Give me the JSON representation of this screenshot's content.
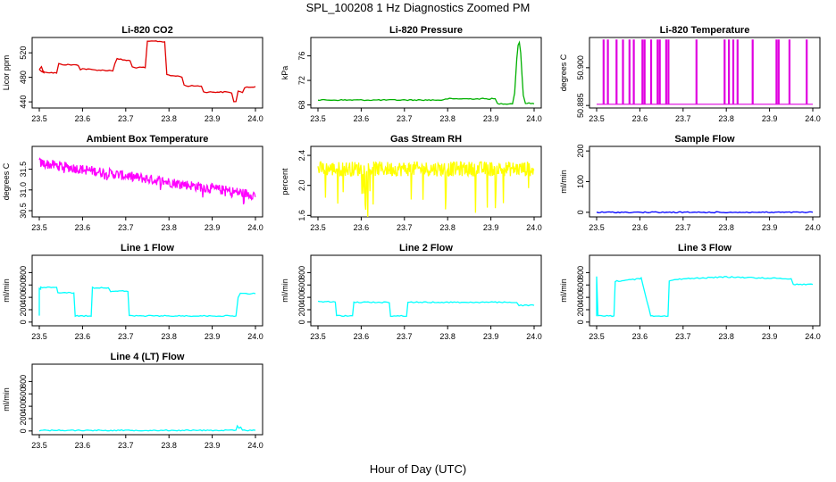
{
  "figure": {
    "title": "SPL_100208  1 Hz Diagnostics Zoomed PM",
    "xlabel": "Hour of Day (UTC)"
  },
  "chart_data": [
    {
      "type": "line",
      "title": "Li-820 CO2",
      "ylabel": "Licor ppm",
      "color": "#e00000",
      "xlim": [
        23.5,
        24.0
      ],
      "ylim": [
        430,
        545
      ],
      "xticks": [
        "23.5",
        "23.6",
        "23.7",
        "23.8",
        "23.9",
        "24.0"
      ],
      "yticks": [
        440,
        480,
        520
      ],
      "series": [
        {
          "x": [
            23.5,
            23.505,
            23.51,
            23.5,
            23.505,
            23.52,
            23.54,
            23.545,
            23.55,
            23.59,
            23.595,
            23.6,
            23.63,
            23.67,
            23.675,
            23.68,
            23.71,
            23.715,
            23.72,
            23.745,
            23.75,
            23.76,
            23.77,
            23.79,
            23.795,
            23.8,
            23.82,
            23.83,
            23.835,
            23.84,
            23.875,
            23.88,
            23.94,
            23.945,
            23.95,
            23.955,
            23.96,
            23.97,
            23.975,
            23.98,
            24.0
          ],
          "y": [
            493,
            497,
            488,
            493,
            490,
            488,
            487,
            502,
            501,
            500,
            493,
            494,
            492,
            491,
            503,
            510,
            507,
            497,
            496,
            496,
            538,
            539,
            539,
            538,
            485,
            483,
            482,
            481,
            467,
            466,
            466,
            456,
            456,
            454,
            441,
            440,
            458,
            455,
            462,
            464,
            465
          ]
        }
      ]
    },
    {
      "type": "line",
      "title": "Li-820 Pressure",
      "ylabel": "kPa",
      "color": "#00b000",
      "xlim": [
        23.5,
        24.0
      ],
      "ylim": [
        67.5,
        79
      ],
      "xticks": [
        "23.5",
        "23.6",
        "23.7",
        "23.8",
        "23.9",
        "24.0"
      ],
      "yticks": [
        68,
        72,
        76
      ],
      "series": [
        {
          "x": [
            23.5,
            23.79,
            23.8,
            23.91,
            23.915,
            23.95,
            23.955,
            23.96,
            23.963,
            23.966,
            23.969,
            23.972,
            23.975,
            23.98,
            24.0
          ],
          "y": [
            68.8,
            68.8,
            69.0,
            69.0,
            68.2,
            68.2,
            70.0,
            75.5,
            77.8,
            78.2,
            76.5,
            73.0,
            69.5,
            68.3,
            68.2
          ]
        }
      ]
    },
    {
      "type": "line",
      "title": "Li-820 Temperature",
      "ylabel": "degrees C",
      "color": "#e000e0",
      "xlim": [
        23.5,
        24.0
      ],
      "ylim": [
        50.884,
        50.912
      ],
      "xticks": [
        "23.5",
        "23.6",
        "23.7",
        "23.8",
        "23.9",
        "24.0"
      ],
      "yticks": [
        50.885,
        50.9
      ],
      "ytick_labels": [
        "50.885",
        "50.900"
      ],
      "baseline": 50.8855,
      "spikes": [
        23.515,
        23.525,
        23.545,
        23.56,
        23.575,
        23.585,
        23.605,
        23.61,
        23.625,
        23.64,
        23.645,
        23.66,
        23.665,
        23.73,
        23.795,
        23.805,
        23.815,
        23.825,
        23.86,
        23.915,
        23.92,
        23.945,
        23.985
      ],
      "spike_top": 50.911
    },
    {
      "type": "line",
      "title": "Ambient Box Temperature",
      "ylabel": "degrees C",
      "color": "#ff00ff",
      "xlim": [
        23.5,
        24.0
      ],
      "ylim": [
        30.35,
        32.05
      ],
      "xticks": [
        "23.5",
        "23.6",
        "23.7",
        "23.8",
        "23.9",
        "24.0"
      ],
      "yticks": [
        30.5,
        31.0,
        31.5
      ],
      "ytick_labels": [
        "30.5",
        "31.0",
        "31.5"
      ],
      "trend": {
        "x": [
          23.5,
          24.0
        ],
        "y": [
          31.65,
          30.88
        ]
      },
      "noise": 0.12
    },
    {
      "type": "line",
      "title": "Gas Stream RH",
      "ylabel": "percent",
      "color": "#ffff00",
      "xlim": [
        23.5,
        24.0
      ],
      "ylim": [
        1.58,
        2.52
      ],
      "xticks": [
        "23.5",
        "23.6",
        "23.7",
        "23.8",
        "23.9",
        "24.0"
      ],
      "yticks": [
        1.6,
        2.0,
        2.4
      ],
      "ytick_labels": [
        "1.6",
        "2.0",
        "2.4"
      ],
      "center": 2.22,
      "noise": 0.1
    },
    {
      "type": "line",
      "title": "Sample Flow",
      "ylabel": "ml/min",
      "color": "#0000ff",
      "xlim": [
        23.5,
        24.0
      ],
      "ylim": [
        -15,
        215
      ],
      "xticks": [
        "23.5",
        "23.6",
        "23.7",
        "23.8",
        "23.9",
        "24.0"
      ],
      "yticks": [
        0,
        100,
        200
      ],
      "series": [
        {
          "x": [
            23.5,
            24.0
          ],
          "y": [
            0,
            0
          ]
        }
      ]
    },
    {
      "type": "line",
      "title": "Line 1 Flow",
      "ylabel": "ml/min",
      "color": "#00ffff",
      "xlim": [
        23.5,
        24.0
      ],
      "ylim": [
        -60,
        1080
      ],
      "xticks": [
        "23.5",
        "23.6",
        "23.7",
        "23.8",
        "23.9",
        "24.0"
      ],
      "yticks": [
        0,
        200,
        400,
        600,
        800
      ],
      "series": [
        {
          "x": [
            23.5,
            23.5,
            23.503,
            23.503,
            23.54,
            23.543,
            23.58,
            23.583,
            23.62,
            23.623,
            23.66,
            23.665,
            23.705,
            23.708,
            23.955,
            23.96,
            23.965,
            24.0
          ],
          "y": [
            100,
            540,
            540,
            560,
            560,
            480,
            470,
            100,
            100,
            555,
            555,
            500,
            500,
            100,
            100,
            400,
            460,
            460
          ]
        }
      ]
    },
    {
      "type": "line",
      "title": "Line 2 Flow",
      "ylabel": "ml/min",
      "color": "#00ffff",
      "xlim": [
        23.5,
        24.0
      ],
      "ylim": [
        -60,
        1080
      ],
      "xticks": [
        "23.5",
        "23.6",
        "23.7",
        "23.8",
        "23.9",
        "24.0"
      ],
      "yticks": [
        0,
        200,
        400,
        600,
        800
      ],
      "series": [
        {
          "x": [
            23.5,
            23.54,
            23.543,
            23.58,
            23.583,
            23.665,
            23.668,
            23.705,
            23.708,
            23.96,
            23.965,
            24.0
          ],
          "y": [
            330,
            330,
            100,
            100,
            320,
            320,
            100,
            100,
            320,
            320,
            270,
            270
          ]
        }
      ]
    },
    {
      "type": "line",
      "title": "Line 3 Flow",
      "ylabel": "ml/min",
      "color": "#00ffff",
      "xlim": [
        23.5,
        24.0
      ],
      "ylim": [
        -60,
        1080
      ],
      "xticks": [
        "23.5",
        "23.6",
        "23.7",
        "23.8",
        "23.9",
        "24.0"
      ],
      "yticks": [
        0,
        200,
        400,
        600,
        800
      ],
      "series": [
        {
          "x": [
            23.5,
            23.5,
            23.503,
            23.54,
            23.543,
            23.6,
            23.603,
            23.625,
            23.628,
            23.665,
            23.668,
            23.7,
            23.8,
            23.95,
            23.955,
            24.0
          ],
          "y": [
            100,
            730,
            100,
            100,
            660,
            700,
            720,
            100,
            100,
            100,
            670,
            700,
            730,
            700,
            610,
            610
          ]
        }
      ]
    },
    {
      "type": "line",
      "title": "Line 4 (LT) Flow",
      "ylabel": "ml/min",
      "color": "#00ffff",
      "xlim": [
        23.5,
        24.0
      ],
      "ylim": [
        -60,
        1080
      ],
      "xticks": [
        "23.5",
        "23.6",
        "23.7",
        "23.8",
        "23.9",
        "24.0"
      ],
      "yticks": [
        0,
        200,
        400,
        600,
        800
      ],
      "series": [
        {
          "x": [
            23.5,
            23.955,
            23.958,
            23.962,
            23.966,
            23.97,
            24.0
          ],
          "y": [
            10,
            10,
            80,
            40,
            60,
            10,
            10
          ]
        }
      ]
    }
  ]
}
